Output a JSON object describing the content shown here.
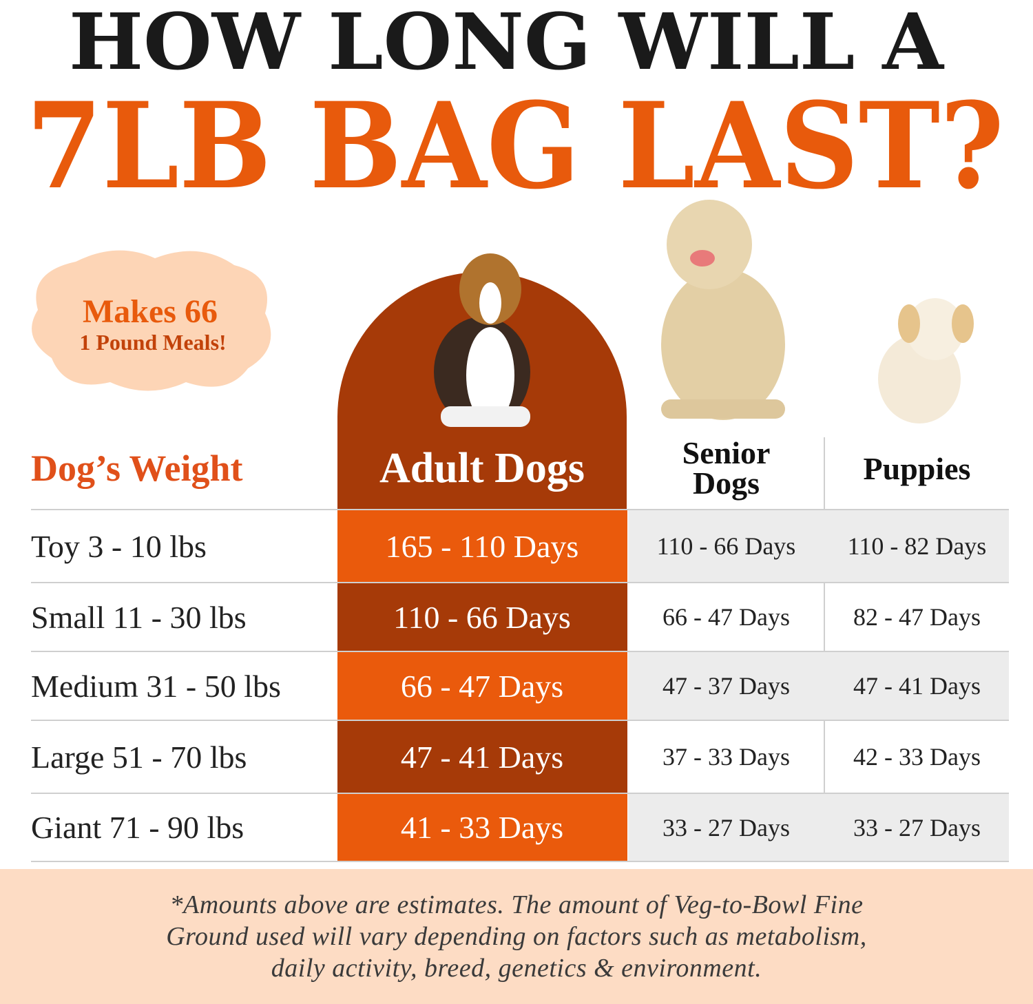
{
  "title": {
    "line1": "HOW LONG WILL A",
    "line2": "7LB BAG LAST?"
  },
  "badge": {
    "line1": "Makes 66",
    "line2": "1 Pound Meals!"
  },
  "table": {
    "headers": [
      "Dog’s Weight",
      "Adult Dogs",
      "Senior Dogs",
      "Puppies"
    ],
    "rows": [
      [
        "Toy 3 - 10 lbs",
        "165 - 110 Days",
        "110 - 66 Days",
        "110 - 82 Days"
      ],
      [
        "Small 11 - 30 lbs",
        "110 - 66 Days",
        "66 - 47 Days",
        "82 - 47 Days"
      ],
      [
        "Medium 31 - 50 lbs",
        "66 - 47 Days",
        "47 - 37 Days",
        "47 - 41 Days"
      ],
      [
        "Large 51 - 70 lbs",
        "47 - 41 Days",
        "37 - 33 Days",
        "42 - 33 Days"
      ],
      [
        "Giant 71 - 90 lbs",
        "41 - 33 Days",
        "33 - 27 Days",
        "33 - 27 Days"
      ]
    ]
  },
  "footnote": [
    "*Amounts above are estimates. The amount of Veg-to-Bowl Fine",
    "Ground used will vary depending on factors such as metabolism,",
    "daily activity, breed, genetics & environment."
  ]
}
